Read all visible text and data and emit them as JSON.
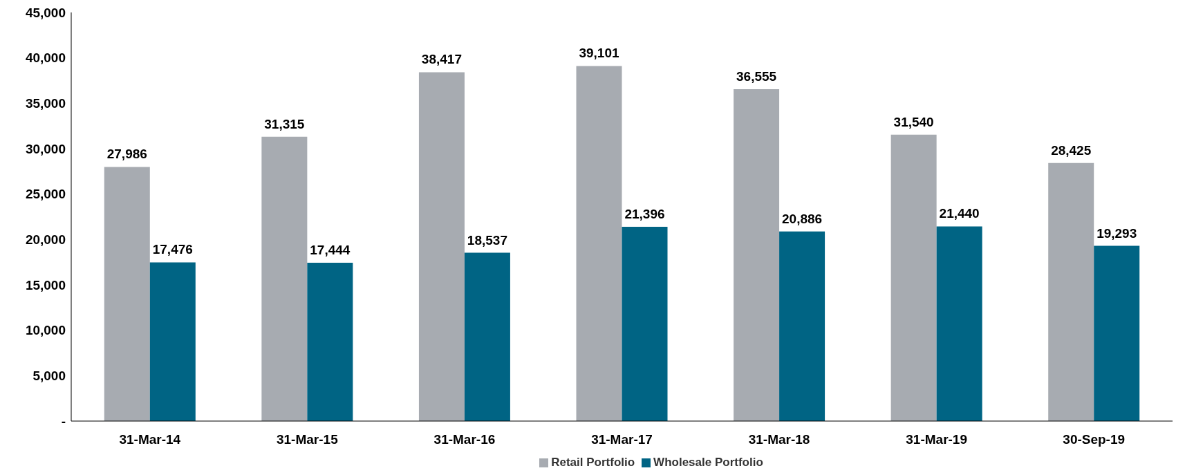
{
  "chart_data": {
    "type": "bar",
    "categories": [
      "31-Mar-14",
      "31-Mar-15",
      "31-Mar-16",
      "31-Mar-17",
      "31-Mar-18",
      "31-Mar-19",
      "30-Sep-19"
    ],
    "series": [
      {
        "name": "Retail Portfolio",
        "color": "#a7abb1",
        "values": [
          27986,
          31315,
          38417,
          39101,
          36555,
          31540,
          28425
        ],
        "value_labels": [
          "27,986",
          "31,315",
          "38,417",
          "39,101",
          "36,555",
          "31,540",
          "28,425"
        ]
      },
      {
        "name": "Wholesale Portfolio",
        "color": "#006484",
        "values": [
          17476,
          17444,
          18537,
          21396,
          20886,
          21440,
          19293
        ],
        "value_labels": [
          "17,476",
          "17,444",
          "18,537",
          "21,396",
          "20,886",
          "21,440",
          "19,293"
        ]
      }
    ],
    "ylim": [
      0,
      45000
    ],
    "yticks": [
      {
        "value": 0,
        "label": "-"
      },
      {
        "value": 5000,
        "label": "5,000"
      },
      {
        "value": 10000,
        "label": "10,000"
      },
      {
        "value": 15000,
        "label": "15,000"
      },
      {
        "value": 20000,
        "label": "20,000"
      },
      {
        "value": 25000,
        "label": "25,000"
      },
      {
        "value": 30000,
        "label": "30,000"
      },
      {
        "value": 35000,
        "label": "35,000"
      },
      {
        "value": 40000,
        "label": "40,000"
      },
      {
        "value": 45000,
        "label": "45,000"
      }
    ],
    "grid": false,
    "legend": "bottom"
  }
}
